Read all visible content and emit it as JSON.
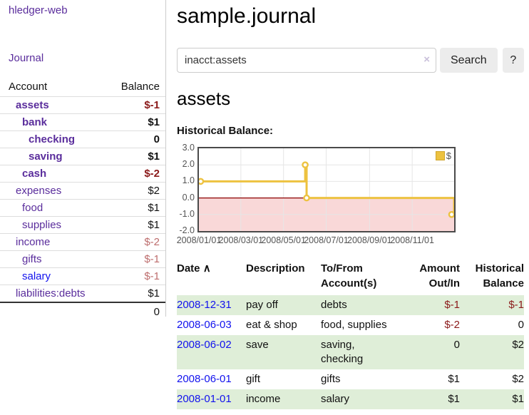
{
  "sidebar": {
    "app_title": "hledger-web",
    "nav_journal": "Journal",
    "table": {
      "col_account": "Account",
      "col_balance": "Balance",
      "accounts": [
        {
          "name": "assets",
          "balance": "$-1"
        },
        {
          "name": "bank",
          "balance": "$1"
        },
        {
          "name": "checking",
          "balance": "0"
        },
        {
          "name": "saving",
          "balance": "$1"
        },
        {
          "name": "cash",
          "balance": "$-2"
        },
        {
          "name": "expenses",
          "balance": "$2"
        },
        {
          "name": "food",
          "balance": "$1"
        },
        {
          "name": "supplies",
          "balance": "$1"
        },
        {
          "name": "income",
          "balance": "$-2"
        },
        {
          "name": "gifts",
          "balance": "$-1"
        },
        {
          "name": "salary",
          "balance": "$-1"
        },
        {
          "name": "liabilities:debts",
          "balance": "$1"
        }
      ],
      "total": "0"
    }
  },
  "main": {
    "title": "sample.journal",
    "search": {
      "value": "inacct:assets",
      "clear_icon": "×",
      "button_label": "Search",
      "help_label": "?"
    },
    "account_heading": "assets",
    "chart_label": "Historical Balance:"
  },
  "chart_data": {
    "type": "line",
    "title": "Historical Balance of assets",
    "line_style": "step",
    "series": [
      {
        "name": "$",
        "color": "#edc240",
        "points": [
          {
            "x": 0,
            "date": "2008-01-01",
            "y": 1
          },
          {
            "x": 152,
            "date": "2008-06-01",
            "y": 2
          },
          {
            "x": 154,
            "date": "2008-06-03",
            "y": 0
          },
          {
            "x": 365,
            "date": "2008-12-31",
            "y": -1
          }
        ]
      }
    ],
    "xlim": [
      0,
      365
    ],
    "ylim": [
      -2,
      3
    ],
    "x_ticks": [
      {
        "x": 0,
        "label": "2008/01/01"
      },
      {
        "x": 60,
        "label": "2008/03/01"
      },
      {
        "x": 121,
        "label": "2008/05/01"
      },
      {
        "x": 182,
        "label": "2008/07/01"
      },
      {
        "x": 244,
        "label": "2008/09/01"
      },
      {
        "x": 305,
        "label": "2008/11/01"
      }
    ],
    "y_ticks": [
      {
        "v": 3,
        "label": "3.0"
      },
      {
        "v": 2,
        "label": "2.0"
      },
      {
        "v": 1,
        "label": "1.0"
      },
      {
        "v": 0,
        "label": "0.0"
      },
      {
        "v": -1,
        "label": "-1.0"
      },
      {
        "v": -2,
        "label": "-2.0"
      }
    ],
    "grid": true,
    "negative_region_color": "#f9d8d8",
    "zero_line_color": "#8b0000",
    "grid_color": "#e6e6e6",
    "legend": {
      "label": "$",
      "position": "top-right"
    }
  },
  "register": {
    "headers": {
      "date": "Date",
      "sort_icon": "∧",
      "description": "Description",
      "accounts": "To/From Account(s)",
      "amount": "Amount Out/In",
      "balance": "Historical Balance"
    },
    "rows": [
      {
        "date": "2008-12-31",
        "description": "pay off",
        "accounts": "debts",
        "amount": "$-1",
        "balance": "$-1"
      },
      {
        "date": "2008-06-03",
        "description": "eat & shop",
        "accounts": "food, supplies",
        "amount": "$-2",
        "balance": "0"
      },
      {
        "date": "2008-06-02",
        "description": "save",
        "accounts": "saving, checking",
        "amount": "0",
        "balance": "$2"
      },
      {
        "date": "2008-06-01",
        "description": "gift",
        "accounts": "gifts",
        "amount": "$1",
        "balance": "$2"
      },
      {
        "date": "2008-01-01",
        "description": "income",
        "accounts": "salary",
        "amount": "$1",
        "balance": "$1"
      }
    ]
  }
}
